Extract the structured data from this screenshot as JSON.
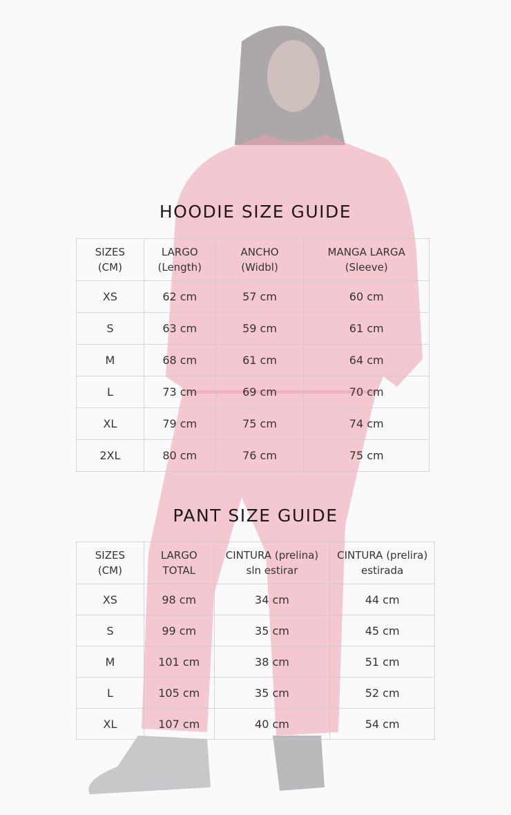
{
  "hoodie": {
    "title": "HOODIE SIZE GUIDE",
    "headers": [
      {
        "line1": "SIZES",
        "line2": "(CM)"
      },
      {
        "line1": "LARGO",
        "line2": "(Length)"
      },
      {
        "line1": "ANCHO",
        "line2": "(Widbl)"
      },
      {
        "line1": "MANGA LARGA",
        "line2": "(Sleeve)"
      }
    ],
    "rows": [
      [
        "XS",
        "62 cm",
        "57 cm",
        "60 cm"
      ],
      [
        "S",
        "63 cm",
        "59 cm",
        "61 cm"
      ],
      [
        "M",
        "68 cm",
        "61 cm",
        "64 cm"
      ],
      [
        "L",
        "73 cm",
        "69 cm",
        "70 cm"
      ],
      [
        "XL",
        "79 cm",
        "75 cm",
        "74 cm"
      ],
      [
        "2XL",
        "80 cm",
        "76 cm",
        "75 cm"
      ]
    ]
  },
  "pant": {
    "title": "PANT SIZE GUIDE",
    "headers": [
      {
        "line1": "SIZES",
        "line2": "(CM)"
      },
      {
        "line1": "LARGO",
        "line2": "TOTAL"
      },
      {
        "line1": "CINTURA (prelina)",
        "line2": "sln estirar"
      },
      {
        "line1": "CINTURA (prelira)",
        "line2": "estirada"
      }
    ],
    "rows": [
      [
        "XS",
        "98 cm",
        "34 cm",
        "44 cm"
      ],
      [
        "S",
        "99 cm",
        "35 cm",
        "45 cm"
      ],
      [
        "M",
        "101 cm",
        "38 cm",
        "51 cm"
      ],
      [
        "L",
        "105 cm",
        "35 cm",
        "52 cm"
      ],
      [
        "XL",
        "107 cm",
        "40 cm",
        "54 cm"
      ]
    ]
  },
  "colors": {
    "garment": "#ee9fae",
    "background": "#fbfafa"
  }
}
